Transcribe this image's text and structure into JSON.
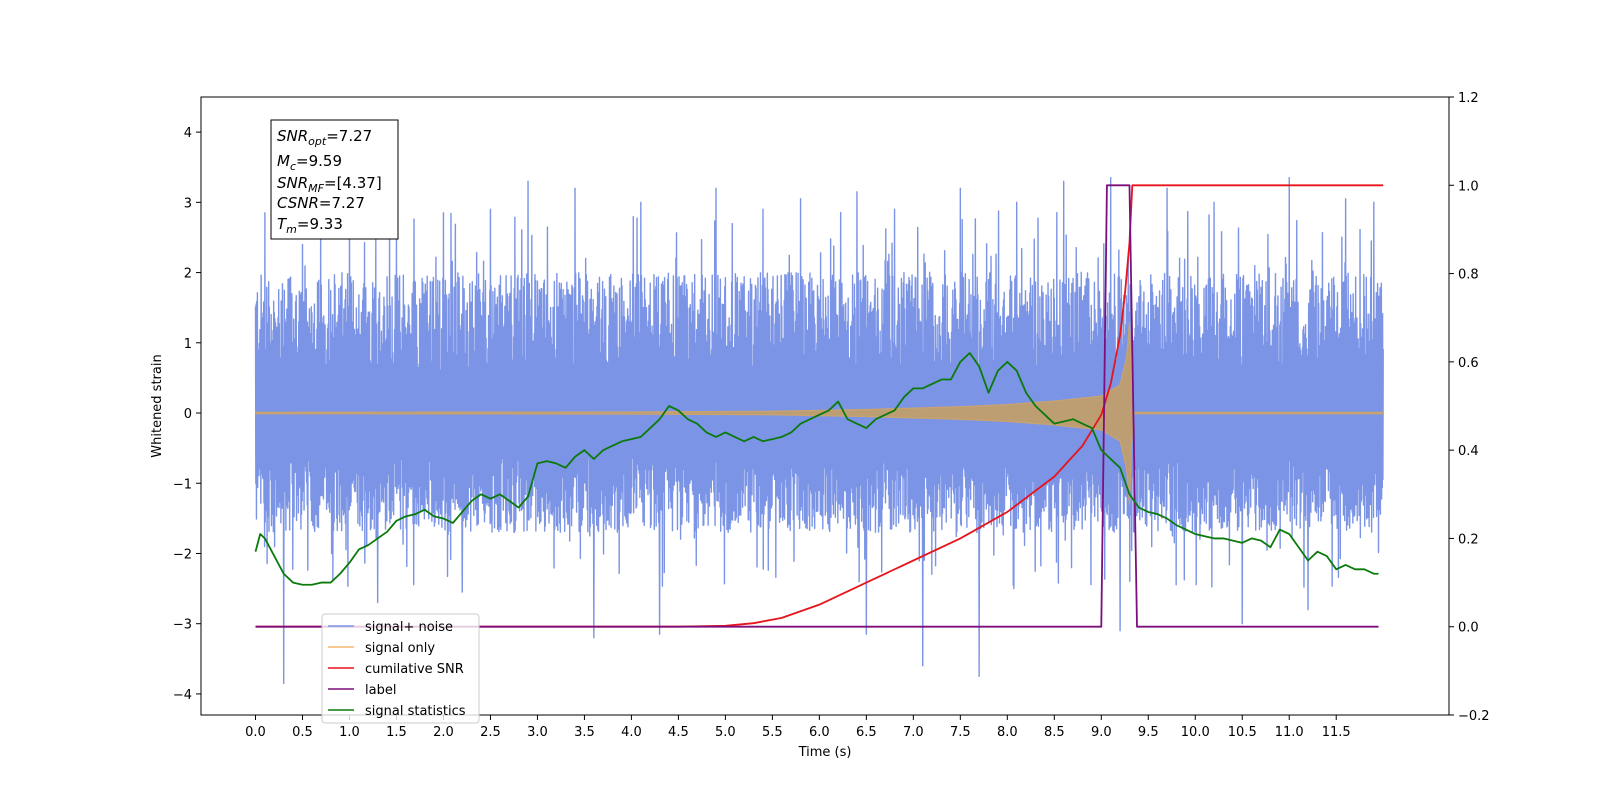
{
  "chart_data": {
    "type": "line",
    "xlabel": "Time (s)",
    "ylabel": "Whitened strain",
    "xlim": [
      -0.58,
      12.7
    ],
    "ylim": [
      -4.3,
      4.5
    ],
    "y2lim": [
      -0.2,
      1.2
    ],
    "grid": false,
    "legend_position": "lower-left",
    "x_ticks": [
      "0.0",
      "0.5",
      "1.0",
      "1.5",
      "2.0",
      "2.5",
      "3.0",
      "3.5",
      "4.0",
      "4.5",
      "5.0",
      "5.5",
      "6.0",
      "6.5",
      "7.0",
      "7.5",
      "8.0",
      "8.5",
      "9.0",
      "9.5",
      "10.0",
      "10.5",
      "11.0",
      "11.5"
    ],
    "y_ticks": [
      "−4",
      "−3",
      "−2",
      "−1",
      "0",
      "1",
      "2",
      "3",
      "4"
    ],
    "y2_ticks": [
      "−0.2",
      "0.0",
      "0.2",
      "0.4",
      "0.6",
      "0.8",
      "1.0",
      "1.2"
    ],
    "info_box": {
      "snr_opt": {
        "sym": "SNR",
        "sub": "opt",
        "value": "=7.27"
      },
      "mc": {
        "sym": "M",
        "sub": "c",
        "value": "=9.59"
      },
      "snr_mf": {
        "sym": "SNR",
        "sub": "MF",
        "value": "=[4.37]"
      },
      "csnr": {
        "sym": "CSNR",
        "sub": "",
        "value": "=7.27"
      },
      "tm": {
        "sym": "T",
        "sub": "m",
        "value": "=9.33"
      }
    },
    "series": [
      {
        "name": "signal+ noise",
        "color": "#7b94e6",
        "axis": "left",
        "kind": "noise",
        "t_start": 0.0,
        "t_end": 12.0,
        "envelope_high": 2.0,
        "envelope_low": -1.7,
        "peaks": [
          [
            0.1,
            2.85
          ],
          [
            0.3,
            -3.85
          ],
          [
            0.5,
            2.4
          ],
          [
            1.0,
            3.05
          ],
          [
            1.3,
            -2.7
          ],
          [
            1.5,
            2.65
          ],
          [
            2.0,
            2.85
          ],
          [
            2.2,
            -2.55
          ],
          [
            2.5,
            2.9
          ],
          [
            2.9,
            3.3
          ],
          [
            3.4,
            3.2
          ],
          [
            3.6,
            -3.2
          ],
          [
            4.1,
            3.0
          ],
          [
            4.3,
            -3.15
          ],
          [
            4.9,
            3.2
          ],
          [
            5.4,
            2.9
          ],
          [
            5.8,
            3.05
          ],
          [
            6.4,
            3.15
          ],
          [
            6.5,
            -3.15
          ],
          [
            6.8,
            2.9
          ],
          [
            7.1,
            -3.6
          ],
          [
            7.5,
            3.2
          ],
          [
            7.7,
            -3.75
          ],
          [
            8.1,
            3.0
          ],
          [
            8.6,
            3.3
          ],
          [
            9.1,
            3.35
          ],
          [
            9.2,
            -3.1
          ],
          [
            9.7,
            3.2
          ],
          [
            10.2,
            3.0
          ],
          [
            10.5,
            -3.0
          ],
          [
            11.0,
            3.35
          ],
          [
            11.2,
            -2.8
          ],
          [
            11.6,
            3.05
          ],
          [
            11.9,
            3.0
          ]
        ]
      },
      {
        "name": "signal only",
        "color": "#f7b96b",
        "axis": "left",
        "kind": "chirp",
        "t_start": 0.0,
        "t_end": 12.0,
        "merger_time": 9.33,
        "envelope": [
          [
            0.0,
            0.01
          ],
          [
            4.0,
            0.015
          ],
          [
            5.5,
            0.025
          ],
          [
            6.5,
            0.05
          ],
          [
            7.5,
            0.09
          ],
          [
            8.0,
            0.12
          ],
          [
            8.5,
            0.17
          ],
          [
            9.0,
            0.24
          ],
          [
            9.2,
            0.4
          ],
          [
            9.27,
            0.8
          ],
          [
            9.3,
            1.3
          ],
          [
            9.32,
            0.5
          ],
          [
            9.34,
            0.01
          ],
          [
            12.0,
            0.01
          ]
        ]
      },
      {
        "name": "cumilative SNR",
        "color": "#e8141b",
        "axis": "right",
        "x": [
          0.0,
          4.5,
          5.0,
          5.3,
          5.6,
          6.0,
          6.5,
          7.0,
          7.5,
          8.0,
          8.5,
          8.8,
          9.0,
          9.1,
          9.2,
          9.25,
          9.3,
          9.33,
          9.4,
          10.0,
          11.0,
          11.5,
          12.0
        ],
        "y": [
          0.0,
          0.0,
          0.002,
          0.008,
          0.02,
          0.05,
          0.1,
          0.15,
          0.2,
          0.26,
          0.34,
          0.41,
          0.48,
          0.55,
          0.66,
          0.75,
          0.87,
          1.0,
          1.0,
          1.0,
          1.0,
          1.0,
          1.0
        ]
      },
      {
        "name": "label",
        "color": "#7d0f7d",
        "axis": "right",
        "x": [
          0.0,
          9.0,
          9.06,
          9.3,
          9.38,
          11.95
        ],
        "y": [
          0.0,
          0.0,
          1.0,
          1.0,
          0.0,
          0.0
        ]
      },
      {
        "name": "signal statistics",
        "color": "#0b7a0b",
        "axis": "right",
        "x": [
          0.0,
          0.05,
          0.1,
          0.2,
          0.3,
          0.4,
          0.5,
          0.6,
          0.7,
          0.8,
          0.9,
          1.0,
          1.1,
          1.2,
          1.3,
          1.4,
          1.5,
          1.6,
          1.7,
          1.8,
          1.9,
          2.0,
          2.1,
          2.2,
          2.3,
          2.4,
          2.5,
          2.6,
          2.7,
          2.8,
          2.9,
          3.0,
          3.1,
          3.2,
          3.3,
          3.4,
          3.5,
          3.6,
          3.7,
          3.8,
          3.9,
          4.0,
          4.1,
          4.2,
          4.3,
          4.4,
          4.5,
          4.6,
          4.7,
          4.8,
          4.9,
          5.0,
          5.1,
          5.2,
          5.3,
          5.4,
          5.5,
          5.6,
          5.7,
          5.8,
          5.9,
          6.0,
          6.1,
          6.2,
          6.3,
          6.4,
          6.5,
          6.6,
          6.7,
          6.8,
          6.9,
          7.0,
          7.1,
          7.2,
          7.3,
          7.4,
          7.5,
          7.6,
          7.7,
          7.8,
          7.9,
          8.0,
          8.1,
          8.2,
          8.3,
          8.4,
          8.5,
          8.6,
          8.7,
          8.8,
          8.9,
          9.0,
          9.1,
          9.2,
          9.3,
          9.4,
          9.5,
          9.6,
          9.7,
          9.8,
          9.9,
          10.0,
          10.1,
          10.2,
          10.3,
          10.4,
          10.5,
          10.6,
          10.7,
          10.8,
          10.9,
          11.0,
          11.1,
          11.2,
          11.3,
          11.4,
          11.5,
          11.6,
          11.7,
          11.8,
          11.9,
          11.95
        ],
        "y": [
          0.17,
          0.21,
          0.2,
          0.16,
          0.12,
          0.1,
          0.095,
          0.095,
          0.1,
          0.1,
          0.12,
          0.145,
          0.175,
          0.185,
          0.2,
          0.215,
          0.24,
          0.25,
          0.255,
          0.265,
          0.25,
          0.245,
          0.235,
          0.26,
          0.285,
          0.3,
          0.29,
          0.3,
          0.285,
          0.27,
          0.295,
          0.37,
          0.375,
          0.37,
          0.36,
          0.385,
          0.4,
          0.38,
          0.4,
          0.41,
          0.42,
          0.425,
          0.43,
          0.45,
          0.47,
          0.5,
          0.49,
          0.47,
          0.46,
          0.44,
          0.43,
          0.44,
          0.43,
          0.42,
          0.43,
          0.42,
          0.425,
          0.43,
          0.44,
          0.46,
          0.47,
          0.48,
          0.49,
          0.51,
          0.47,
          0.46,
          0.45,
          0.47,
          0.48,
          0.49,
          0.52,
          0.54,
          0.54,
          0.55,
          0.56,
          0.56,
          0.6,
          0.62,
          0.59,
          0.53,
          0.58,
          0.6,
          0.58,
          0.53,
          0.5,
          0.48,
          0.46,
          0.465,
          0.47,
          0.46,
          0.45,
          0.4,
          0.38,
          0.36,
          0.3,
          0.27,
          0.26,
          0.255,
          0.245,
          0.23,
          0.22,
          0.21,
          0.205,
          0.2,
          0.2,
          0.195,
          0.19,
          0.2,
          0.195,
          0.18,
          0.22,
          0.21,
          0.18,
          0.15,
          0.17,
          0.16,
          0.13,
          0.14,
          0.13,
          0.13,
          0.12,
          0.12
        ]
      }
    ]
  }
}
